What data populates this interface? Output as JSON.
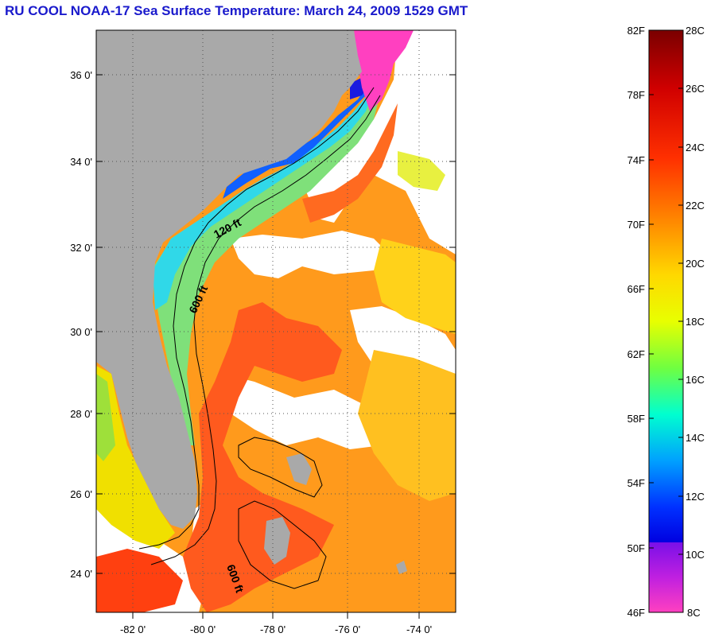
{
  "title": "RU COOL  NOAA-17  Sea Surface Temperature:  March 24, 2009 1529 GMT",
  "map": {
    "lat_labels": [
      "36 0'",
      "34 0'",
      "32 0'",
      "30 0'",
      "28 0'",
      "26 0'",
      "24 0'"
    ],
    "lon_labels": [
      "-82 0'",
      "-80 0'",
      "-78 0'",
      "-76 0'",
      "-74 0'"
    ],
    "contour_labels": [
      "120 ft",
      "600 ft",
      "600 ft"
    ],
    "colors": {
      "land": "#a9a9a9",
      "cloud": "#ffffff",
      "gulf_stream": "#ff5a1e"
    }
  },
  "colorbar": {
    "f_labels": [
      "82F",
      "78F",
      "74F",
      "70F",
      "66F",
      "62F",
      "58F",
      "54F",
      "50F",
      "46F"
    ],
    "c_labels": [
      "28C",
      "26C",
      "24C",
      "22C",
      "20C",
      "18C",
      "16C",
      "14C",
      "12C",
      "10C",
      "8C"
    ],
    "colors": [
      "#800000",
      "#ff0000",
      "#ff8000",
      "#ffff00",
      "#80ff00",
      "#00ffff",
      "#0060ff",
      "#0000ff",
      "#a020f0",
      "#ff33cc"
    ]
  }
}
